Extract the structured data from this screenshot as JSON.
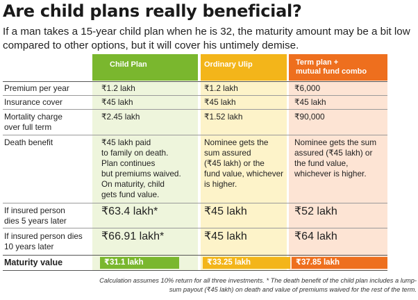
{
  "title": "Are child plans really beneficial?",
  "subtitle": "If a man takes a 15-year child plan when he is 32, the maturity amount may be a bit low compared to other options, but it will cover his untimely demise.",
  "columns": {
    "child": "Child Plan",
    "ulip": "Ordinary Ulip",
    "term": "Term plan +\nmutual fund combo"
  },
  "rows": {
    "premium": {
      "label": "Premium per year",
      "child": "₹1.2 lakh",
      "ulip": "₹1.2 lakh",
      "term": "₹6,000"
    },
    "insurance": {
      "label": "Insurance cover",
      "child": "₹45 lakh",
      "ulip": "₹45 lakh",
      "term": "₹45 lakh"
    },
    "mortality": {
      "label": "Mortality charge\nover full term",
      "child": "₹2.45 lakh",
      "ulip": "₹1.52 lakh",
      "term": "₹90,000"
    },
    "death": {
      "label": "Death benefit",
      "child": "₹45 lakh paid\nto family on death.\nPlan continues\nbut premiums waived.\nOn maturity, child\ngets fund value.",
      "ulip": "Nominee gets the\nsum assured\n(₹45 lakh) or the\nfund value, whichever\nis higher.",
      "term": "Nominee gets the sum\nassured (₹45 lakh) or\nthe fund value,\nwhichever is higher."
    },
    "dies5": {
      "label": "If insured person\ndies 5 years later",
      "child": "₹63.4 lakh*",
      "ulip": "₹45 lakh",
      "term": "₹52 lakh"
    },
    "dies10": {
      "label": "If insured person dies\n10 years later",
      "child": "₹66.91 lakh*",
      "ulip": "₹45 lakh",
      "term": "₹64 lakh"
    },
    "maturity": {
      "label": "Maturity value",
      "child": "₹31.1 lakh",
      "ulip": "₹33.25 lakh",
      "term": "₹37.85 lakh"
    }
  },
  "footnote": "Calculation assumes 10% return for all three investments. * The death benefit of the child plan includes a lump-sum payout (₹45 lakh) on death and value of premiums waived for the rest of the term.",
  "colors": {
    "child": "#7ab72e",
    "ulip": "#f3b51a",
    "term": "#ee6f1e"
  }
}
